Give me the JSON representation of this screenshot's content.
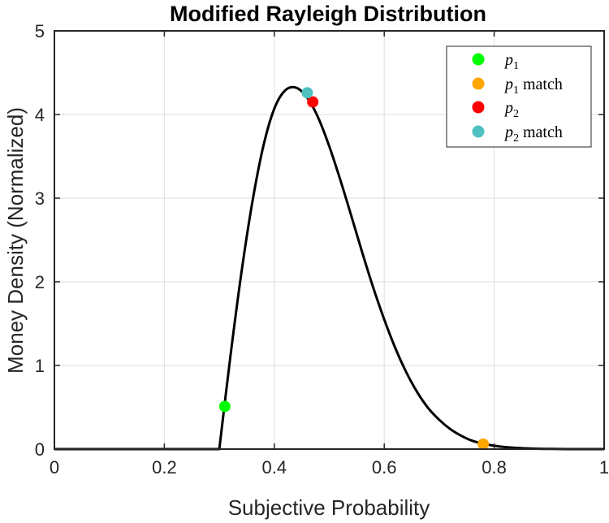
{
  "chart_data": {
    "type": "line",
    "title": "Modified Rayleigh Distribution",
    "xlabel": "Subjective Probability",
    "ylabel": "Money Density (Normalized)",
    "xlim": [
      0,
      1
    ],
    "ylim": [
      0,
      5
    ],
    "xticks": [
      0,
      0.2,
      0.4,
      0.6,
      0.8,
      1
    ],
    "xtick_labels": [
      "0",
      "0.2",
      "0.4",
      "0.6",
      "0.8",
      "1"
    ],
    "yticks": [
      0,
      1,
      2,
      3,
      4,
      5
    ],
    "ytick_labels": [
      "0",
      "1",
      "2",
      "3",
      "4",
      "5"
    ],
    "grid": true,
    "legend_position": "top-right",
    "series": [
      {
        "color": "#000000",
        "x": [
          0,
          0.3,
          0.32,
          0.34,
          0.36,
          0.38,
          0.4,
          0.42,
          0.44,
          0.46,
          0.48,
          0.5,
          0.52,
          0.54,
          0.56,
          0.58,
          0.6,
          0.62,
          0.64,
          0.66,
          0.68,
          0.7,
          0.72,
          0.74,
          0.76,
          0.78,
          0.8,
          0.82,
          0.84,
          0.86,
          0.88,
          0.9,
          0.95,
          1.0
        ],
        "y": [
          0,
          0,
          1.1,
          2.1,
          2.95,
          3.62,
          4.07,
          4.29,
          4.32,
          4.2,
          3.96,
          3.62,
          3.22,
          2.79,
          2.35,
          1.93,
          1.55,
          1.21,
          0.92,
          0.68,
          0.49,
          0.35,
          0.24,
          0.16,
          0.1,
          0.065,
          0.04,
          0.024,
          0.014,
          0.008,
          0.004,
          0.002,
          0.0,
          0.0
        ]
      }
    ],
    "points": [
      {
        "label_base": "p",
        "label_sub": "1",
        "label_suffix": "",
        "x": 0.31,
        "y": 0.51,
        "color": "#00ff00"
      },
      {
        "label_base": "p",
        "label_sub": "1",
        "label_suffix": " match",
        "x": 0.78,
        "y": 0.06,
        "color": "#ffa500"
      },
      {
        "label_base": "p",
        "label_sub": "2",
        "label_suffix": "",
        "x": 0.47,
        "y": 4.15,
        "color": "#ff0000"
      },
      {
        "label_base": "p",
        "label_sub": "2",
        "label_suffix": " match",
        "x": 0.46,
        "y": 4.26,
        "color": "#50c0c0"
      }
    ]
  }
}
